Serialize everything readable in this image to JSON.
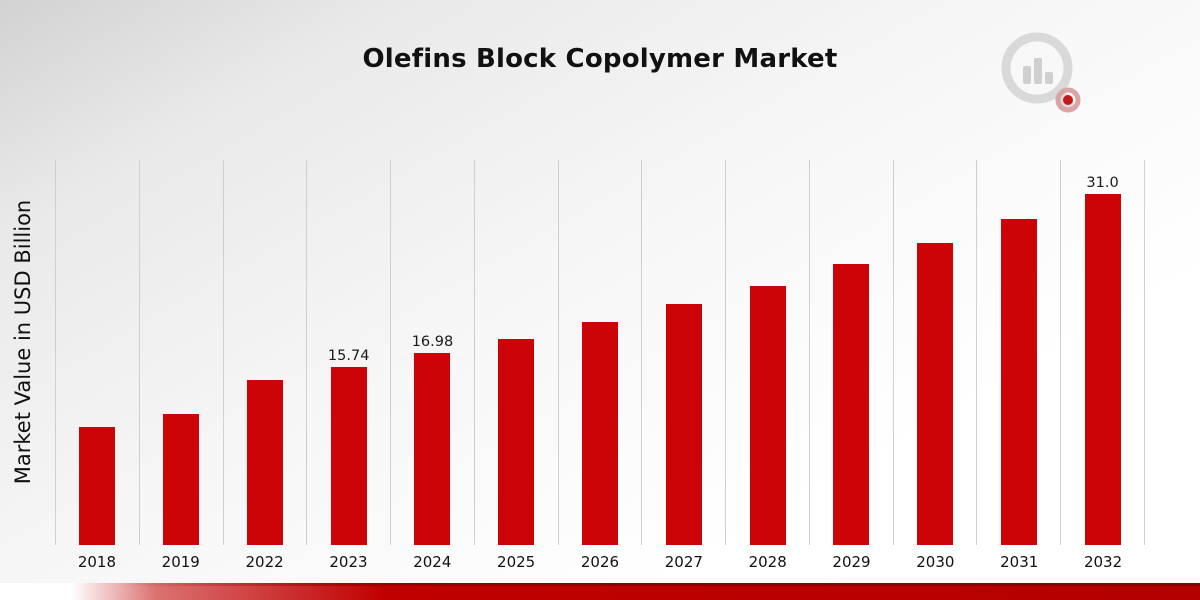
{
  "chart_data": {
    "type": "bar",
    "title": "Olefins Block Copolymer Market",
    "xlabel": "",
    "ylabel": "Market Value in USD Billion",
    "categories": [
      "2018",
      "2019",
      "2022",
      "2023",
      "2024",
      "2025",
      "2026",
      "2027",
      "2028",
      "2029",
      "2030",
      "2031",
      "2032"
    ],
    "values": [
      10.4,
      11.6,
      14.6,
      15.74,
      16.98,
      18.2,
      19.7,
      21.3,
      22.9,
      24.8,
      26.7,
      28.8,
      31.0
    ],
    "bar_labels": [
      "",
      "",
      "",
      "15.74",
      "16.98",
      "",
      "",
      "",
      "",
      "",
      "",
      "",
      "31.0"
    ],
    "ylim": [
      0,
      34
    ],
    "grid": "vertical",
    "legend": "none",
    "bar_color": "#cc0407",
    "gridline_color": "#cfcfcf"
  },
  "branding": {
    "logo_name": "market-research-chart-magnifier-logo",
    "accent_color": "#c00000"
  }
}
